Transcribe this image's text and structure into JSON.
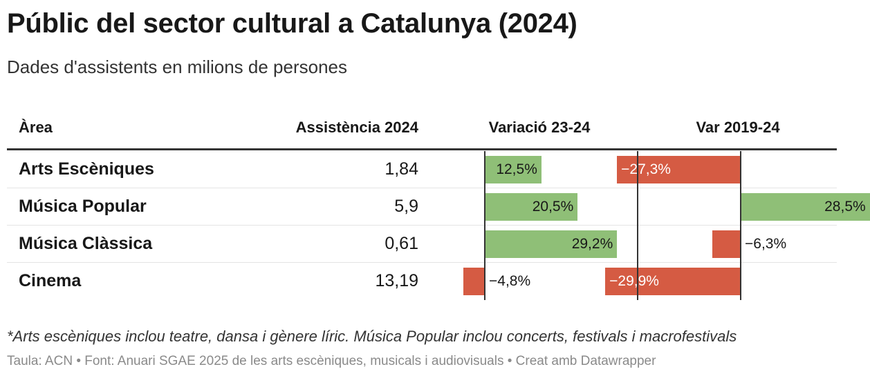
{
  "title": "Públic del sector cultural a Catalunya (2024)",
  "subtitle": "Dades d'assistents en milions de persones",
  "colors": {
    "positive": "#8fbf77",
    "negative": "#d55b43"
  },
  "chart_data": {
    "type": "table",
    "columns": [
      "Àrea",
      "Assistència 2024",
      "Variació 23-24",
      "Var 2019-24"
    ],
    "rows": [
      {
        "area": "Arts Escèniques",
        "attendance": "1,84",
        "var_23_24": 12.5,
        "var_23_24_label": "12,5%",
        "var_2019_24": -27.3,
        "var_2019_24_label": "−27,3%"
      },
      {
        "area": "Música Popular",
        "attendance": "5,9",
        "var_23_24": 20.5,
        "var_23_24_label": "20,5%",
        "var_2019_24": 28.5,
        "var_2019_24_label": "28,5%"
      },
      {
        "area": "Música Clàssica",
        "attendance": "0,61",
        "var_23_24": 29.2,
        "var_23_24_label": "29,2%",
        "var_2019_24": -6.3,
        "var_2019_24_label": "−6,3%"
      },
      {
        "area": "Cinema",
        "attendance": "13,19",
        "var_23_24": -4.8,
        "var_23_24_label": "−4,8%",
        "var_2019_24": -29.9,
        "var_2019_24_label": "−29,9%"
      }
    ]
  },
  "notes": "*Arts escèniques inclou teatre, dansa i gènere líric. Música Popular inclou concerts, festivals i macrofestivals",
  "source": "Taula: ACN • Font: Anuari SGAE 2025 de les arts escèniques, musicals i audiovisuals • Creat amb Datawrapper"
}
